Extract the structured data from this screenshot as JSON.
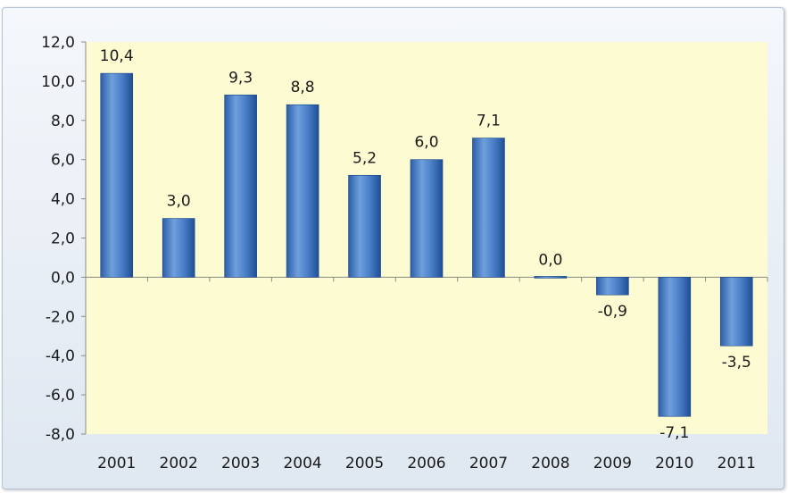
{
  "chart_data": {
    "type": "bar",
    "categories": [
      "2001",
      "2002",
      "2003",
      "2004",
      "2005",
      "2006",
      "2007",
      "2008",
      "2009",
      "2010",
      "2011"
    ],
    "values": [
      10.4,
      3.0,
      9.3,
      8.8,
      5.2,
      6.0,
      7.1,
      0.0,
      -0.9,
      -7.1,
      -3.5
    ],
    "value_labels": [
      "10,4",
      "3,0",
      "9,3",
      "8,8",
      "5,2",
      "6,0",
      "7,1",
      "0,0",
      "-0,9",
      "-7,1",
      "-3,5"
    ],
    "ylim": [
      -8,
      12
    ],
    "yticks": [
      12,
      10,
      8,
      6,
      4,
      2,
      0,
      -2,
      -4,
      -6,
      -8
    ],
    "ytick_labels": [
      "12,0",
      "10,0",
      "8,0",
      "6,0",
      "4,0",
      "2,0",
      "0,0",
      "-2,0",
      "-4,0",
      "-6,0",
      "-8,0"
    ],
    "title": "",
    "xlabel": "",
    "ylabel": "",
    "grid": false,
    "legend": "none",
    "colors": {
      "plot_background": "#fdfbd2",
      "bar_light": "#6f9fdc",
      "bar_dark": "#1f4f95"
    }
  }
}
